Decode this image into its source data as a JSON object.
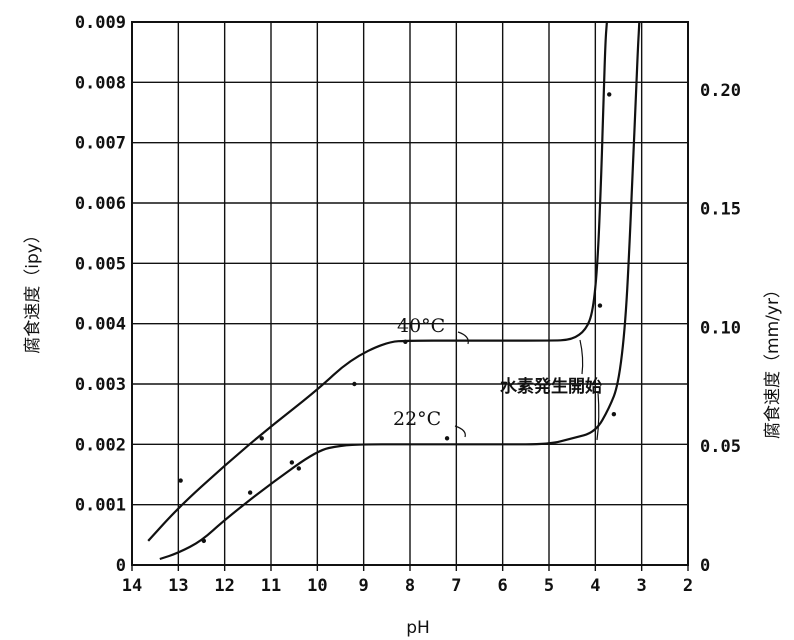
{
  "chart_data": {
    "type": "line",
    "xlabel": "pH",
    "ylabel_left": "腐食速度（ipy）",
    "ylabel_right": "腐食速度（mm/yr）",
    "x_reversed": true,
    "xlim": [
      14,
      2
    ],
    "ylim_left": [
      0,
      0.009
    ],
    "ylim_right": [
      0,
      0.2286
    ],
    "grid": true,
    "x_ticks": [
      "14",
      "13",
      "12",
      "11",
      "10",
      "9",
      "8",
      "7",
      "6",
      "5",
      "4",
      "3",
      "2"
    ],
    "x_tick_values": [
      14,
      13,
      12,
      11,
      10,
      9,
      8,
      7,
      6,
      5,
      4,
      3,
      2
    ],
    "y_left_ticks": [
      "0",
      "0.001",
      "0.002",
      "0.003",
      "0.004",
      "0.005",
      "0.006",
      "0.007",
      "0.008",
      "0.009"
    ],
    "y_left_tick_values": [
      0,
      0.001,
      0.002,
      0.003,
      0.004,
      0.005,
      0.006,
      0.007,
      0.008,
      0.009
    ],
    "y_right_ticks": [
      "0",
      "0.05",
      "0.10",
      "0.15",
      "0.20"
    ],
    "y_right_tick_values_ipy": [
      0,
      0.001969,
      0.003937,
      0.005906,
      0.007874
    ],
    "series": [
      {
        "name": "40°C",
        "x": [
          13.65,
          13,
          12,
          11,
          10,
          9.3,
          8.5,
          8.0,
          7.0,
          6.0,
          5.0,
          4.5,
          4.2,
          4.05,
          3.95,
          3.87,
          3.82,
          3.78,
          3.75
        ],
        "y": [
          0.0004,
          0.00095,
          0.00165,
          0.0023,
          0.0029,
          0.0034,
          0.0037,
          0.00372,
          0.00372,
          0.00372,
          0.00372,
          0.00373,
          0.0039,
          0.0042,
          0.005,
          0.0065,
          0.0078,
          0.0087,
          0.009
        ]
      },
      {
        "name": "22°C",
        "x": [
          13.4,
          13,
          12.5,
          12,
          11,
          10,
          9.5,
          9.0,
          8.0,
          7.0,
          6.0,
          5.0,
          4.5,
          4.0,
          3.7,
          3.5,
          3.35,
          3.25,
          3.18,
          3.12,
          3.08,
          3.05
        ],
        "y": [
          0.0001,
          0.0002,
          0.0004,
          0.00075,
          0.00135,
          0.0019,
          0.00198,
          0.002,
          0.002,
          0.002,
          0.002,
          0.002,
          0.0021,
          0.0022,
          0.0026,
          0.003,
          0.004,
          0.0055,
          0.0068,
          0.0078,
          0.0086,
          0.009
        ]
      }
    ],
    "points": [
      {
        "x": 12.95,
        "y": 0.0014
      },
      {
        "x": 11.2,
        "y": 0.0021
      },
      {
        "x": 10.55,
        "y": 0.0017
      },
      {
        "x": 10.4,
        "y": 0.0016
      },
      {
        "x": 11.45,
        "y": 0.0012
      },
      {
        "x": 12.45,
        "y": 0.0004
      },
      {
        "x": 8.1,
        "y": 0.0037
      },
      {
        "x": 9.2,
        "y": 0.003
      },
      {
        "x": 7.2,
        "y": 0.0021
      },
      {
        "x": 3.9,
        "y": 0.0043
      },
      {
        "x": 3.6,
        "y": 0.0025
      },
      {
        "x": 3.7,
        "y": 0.0078
      }
    ],
    "annotations": {
      "label_40": "40°C",
      "label_22": "22°C",
      "hydrogen": "水素発生開始"
    }
  }
}
